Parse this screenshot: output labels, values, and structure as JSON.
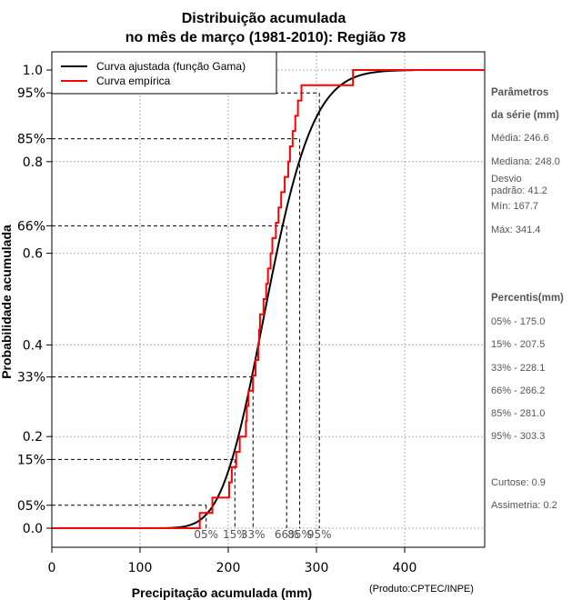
{
  "chart_data": {
    "type": "line",
    "title_lines": [
      "Distribuição acumulada",
      "no mês de março (1981-2010): Região 78"
    ],
    "xlabel": "Precipitação acumulada (mm)",
    "ylabel": "Probabilidade acumulada",
    "credit": "(Produto:CPTEC/INPE)",
    "xlim": [
      0,
      490
    ],
    "ylim": [
      0,
      1
    ],
    "x_ticks": [
      0,
      100,
      200,
      300,
      400
    ],
    "x_tick_labels": [
      "0",
      "100",
      "200",
      "300",
      "400"
    ],
    "y_ticks": [
      0.0,
      0.2,
      0.4,
      0.6,
      0.8,
      1.0
    ],
    "y_tick_labels": [
      "0.0",
      "0.2",
      "0.4",
      "0.6",
      "0.8",
      "1.0"
    ],
    "percentile_levels": [
      0.05,
      0.15,
      0.33,
      0.66,
      0.85,
      0.95
    ],
    "percentile_y_labels": [
      "05%",
      "15%",
      "33%",
      "66%",
      "85%",
      "95%"
    ],
    "percentile_x_values": [
      175.0,
      207.5,
      228.1,
      266.2,
      281.0,
      303.3
    ],
    "percentile_x_labels": [
      "05%",
      "15%",
      "33%",
      "66%",
      "85%",
      "95%"
    ],
    "legend": {
      "position": "top-left",
      "entries": [
        {
          "label": "Curva ajustada (função Gama)",
          "color": "#000000"
        },
        {
          "label": "Curva empírica",
          "color": "#ff0000"
        }
      ]
    },
    "series": [
      {
        "name": "Curva ajustada (função Gama)",
        "kind": "gamma_cdf",
        "mean": 246.6,
        "sd": 41.2,
        "x_start": 0,
        "x_end": 410,
        "color": "#000000"
      },
      {
        "name": "Curva empírica",
        "kind": "step",
        "color": "#ff0000",
        "x": [
          167.7,
          182,
          201,
          204,
          209,
          213,
          220,
          221,
          223,
          228,
          231,
          234,
          235,
          236,
          240,
          243,
          245,
          248,
          250,
          254,
          257,
          260,
          264,
          268,
          270,
          273,
          276,
          279,
          283,
          284,
          341.4
        ],
        "y": [
          0.0333,
          0.0667,
          0.1,
          0.1333,
          0.1667,
          0.2,
          0.2333,
          0.2667,
          0.3,
          0.3333,
          0.3667,
          0.4,
          0.4333,
          0.4667,
          0.5,
          0.5333,
          0.5667,
          0.6,
          0.6333,
          0.6667,
          0.7,
          0.7333,
          0.7667,
          0.8,
          0.8333,
          0.8667,
          0.9,
          0.9333,
          0.9667,
          0.9667,
          1.0
        ],
        "x_before": 0,
        "x_after": 490
      }
    ]
  },
  "sidebar": {
    "params_title_1": "Parâmetros",
    "params_title_2": "da série (mm)",
    "media": "Média: 246.6",
    "mediana": "Mediana: 248.0",
    "desvio_1": "Desvio",
    "desvio_2": "padrão: 41.2",
    "min": "Mín: 167.7",
    "max": "Máx: 341.4",
    "percentis_title": "Percentis(mm)",
    "p05": "05% - 175.0",
    "p15": "15% - 207.5",
    "p33": "33% - 228.1",
    "p66": "66% - 266.2",
    "p85": "85% - 281.0",
    "p95": "95% - 303.3",
    "curtose": "Curtose: 0.9",
    "assimetria": "Assimetria: 0.2"
  }
}
